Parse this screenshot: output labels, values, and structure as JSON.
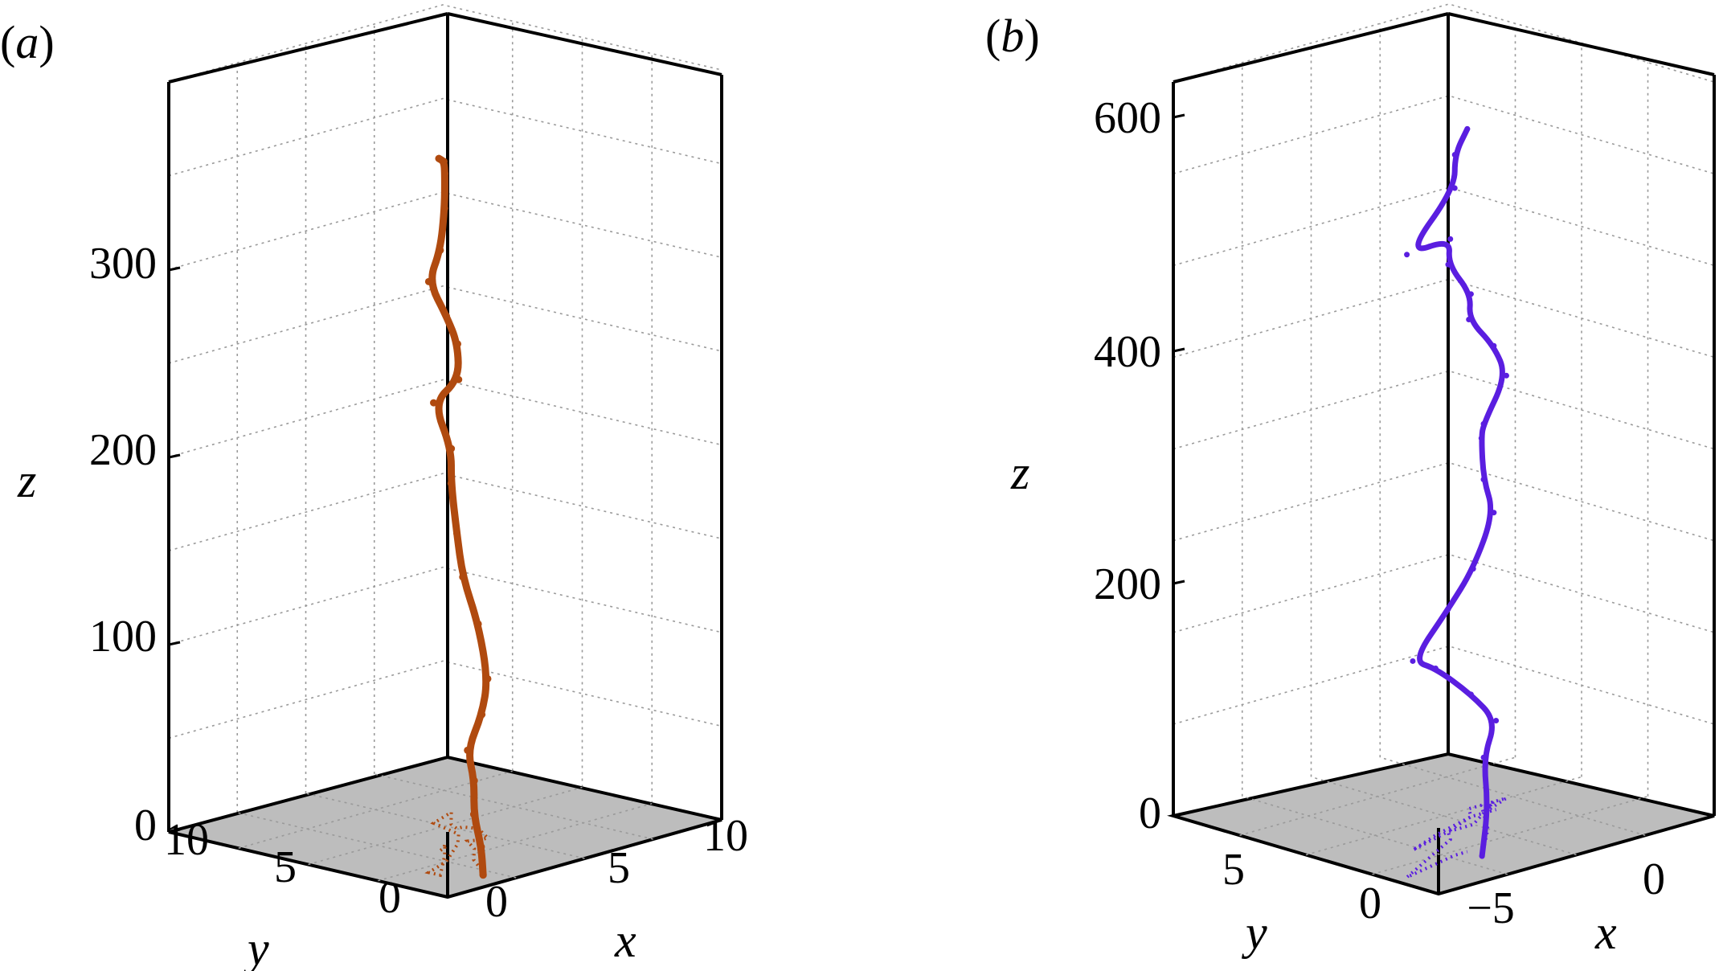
{
  "chart_data": [
    {
      "type": "line",
      "panel_label": "(a)",
      "panel_label_parts": [
        "(",
        "a",
        ")"
      ],
      "xlabel": "x",
      "ylabel": "y",
      "zlabel": "z",
      "xlim": [
        -2,
        12
      ],
      "ylim": [
        0,
        12
      ],
      "zlim": [
        0,
        330
      ],
      "xticks": [
        "0",
        "5",
        "10"
      ],
      "yticks": [
        "10",
        "5",
        "0"
      ],
      "zticks": [
        "0",
        "100",
        "200",
        "300"
      ],
      "floor_projection": "dotted",
      "series": [
        {
          "color": "#b04a0f",
          "points": [
            [
              1.0,
              1.0,
              0
            ],
            [
              1.5,
              1.5,
              10
            ],
            [
              2.3,
              2.5,
              20
            ],
            [
              3.4,
              3.4,
              30
            ],
            [
              4.0,
              4.2,
              40
            ],
            [
              4.5,
              4.0,
              55
            ],
            [
              4.8,
              4.0,
              70
            ],
            [
              5.5,
              5.0,
              90
            ],
            [
              5.3,
              5.5,
              110
            ],
            [
              5.0,
              5.5,
              130
            ],
            [
              5.3,
              6.0,
              150
            ],
            [
              6.5,
              7.0,
              160
            ],
            [
              5.0,
              6.5,
              185
            ],
            [
              4.5,
              5.0,
              200
            ],
            [
              3.5,
              4.2,
              220
            ],
            [
              1.5,
              3.0,
              240
            ],
            [
              0.0,
              2.5,
              260
            ],
            [
              0.0,
              2.0,
              275
            ],
            [
              2.0,
              3.5,
              285
            ],
            [
              3.2,
              4.5,
              295
            ],
            [
              2.8,
              4.2,
              302
            ],
            [
              2.3,
              4.0,
              305
            ]
          ]
        }
      ]
    },
    {
      "type": "line",
      "panel_label": "(b)",
      "panel_label_parts": [
        "(",
        "b",
        ")"
      ],
      "xlabel": "x",
      "ylabel": "y",
      "zlabel": "z",
      "xlim": [
        -9,
        2
      ],
      "ylim": [
        -1,
        8
      ],
      "zlim": [
        0,
        660
      ],
      "xticks": [
        "−5",
        "0"
      ],
      "yticks": [
        "5",
        "0"
      ],
      "zticks": [
        "0",
        "200",
        "400",
        "600"
      ],
      "floor_projection": "dotted",
      "series": [
        {
          "color": "#5a1ee0",
          "points": [
            [
              -5.5,
              0.5,
              0
            ],
            [
              -3.5,
              2.0,
              20
            ],
            [
              -2.5,
              3.0,
              50
            ],
            [
              -2.0,
              3.0,
              80
            ],
            [
              -3.0,
              3.0,
              110
            ],
            [
              -5.0,
              2.5,
              150
            ],
            [
              -6.5,
              2.0,
              170
            ],
            [
              -4.5,
              2.5,
              200
            ],
            [
              -3.5,
              2.5,
              230
            ],
            [
              -1.5,
              3.5,
              260
            ],
            [
              -2.5,
              3.0,
              300
            ],
            [
              -2.0,
              3.5,
              330
            ],
            [
              -2.5,
              3.0,
              350
            ],
            [
              -1.0,
              3.5,
              380
            ],
            [
              -1.5,
              3.5,
              410
            ],
            [
              -2.5,
              3.5,
              440
            ],
            [
              -3.0,
              3.0,
              470
            ],
            [
              -4.5,
              2.5,
              510
            ],
            [
              -5.0,
              2.0,
              540
            ],
            [
              -8.5,
              0.5,
              560
            ],
            [
              -6.0,
              1.0,
              600
            ],
            [
              -6.0,
              1.0,
              630
            ],
            [
              -5.5,
              1.0,
              650
            ]
          ]
        }
      ]
    }
  ]
}
